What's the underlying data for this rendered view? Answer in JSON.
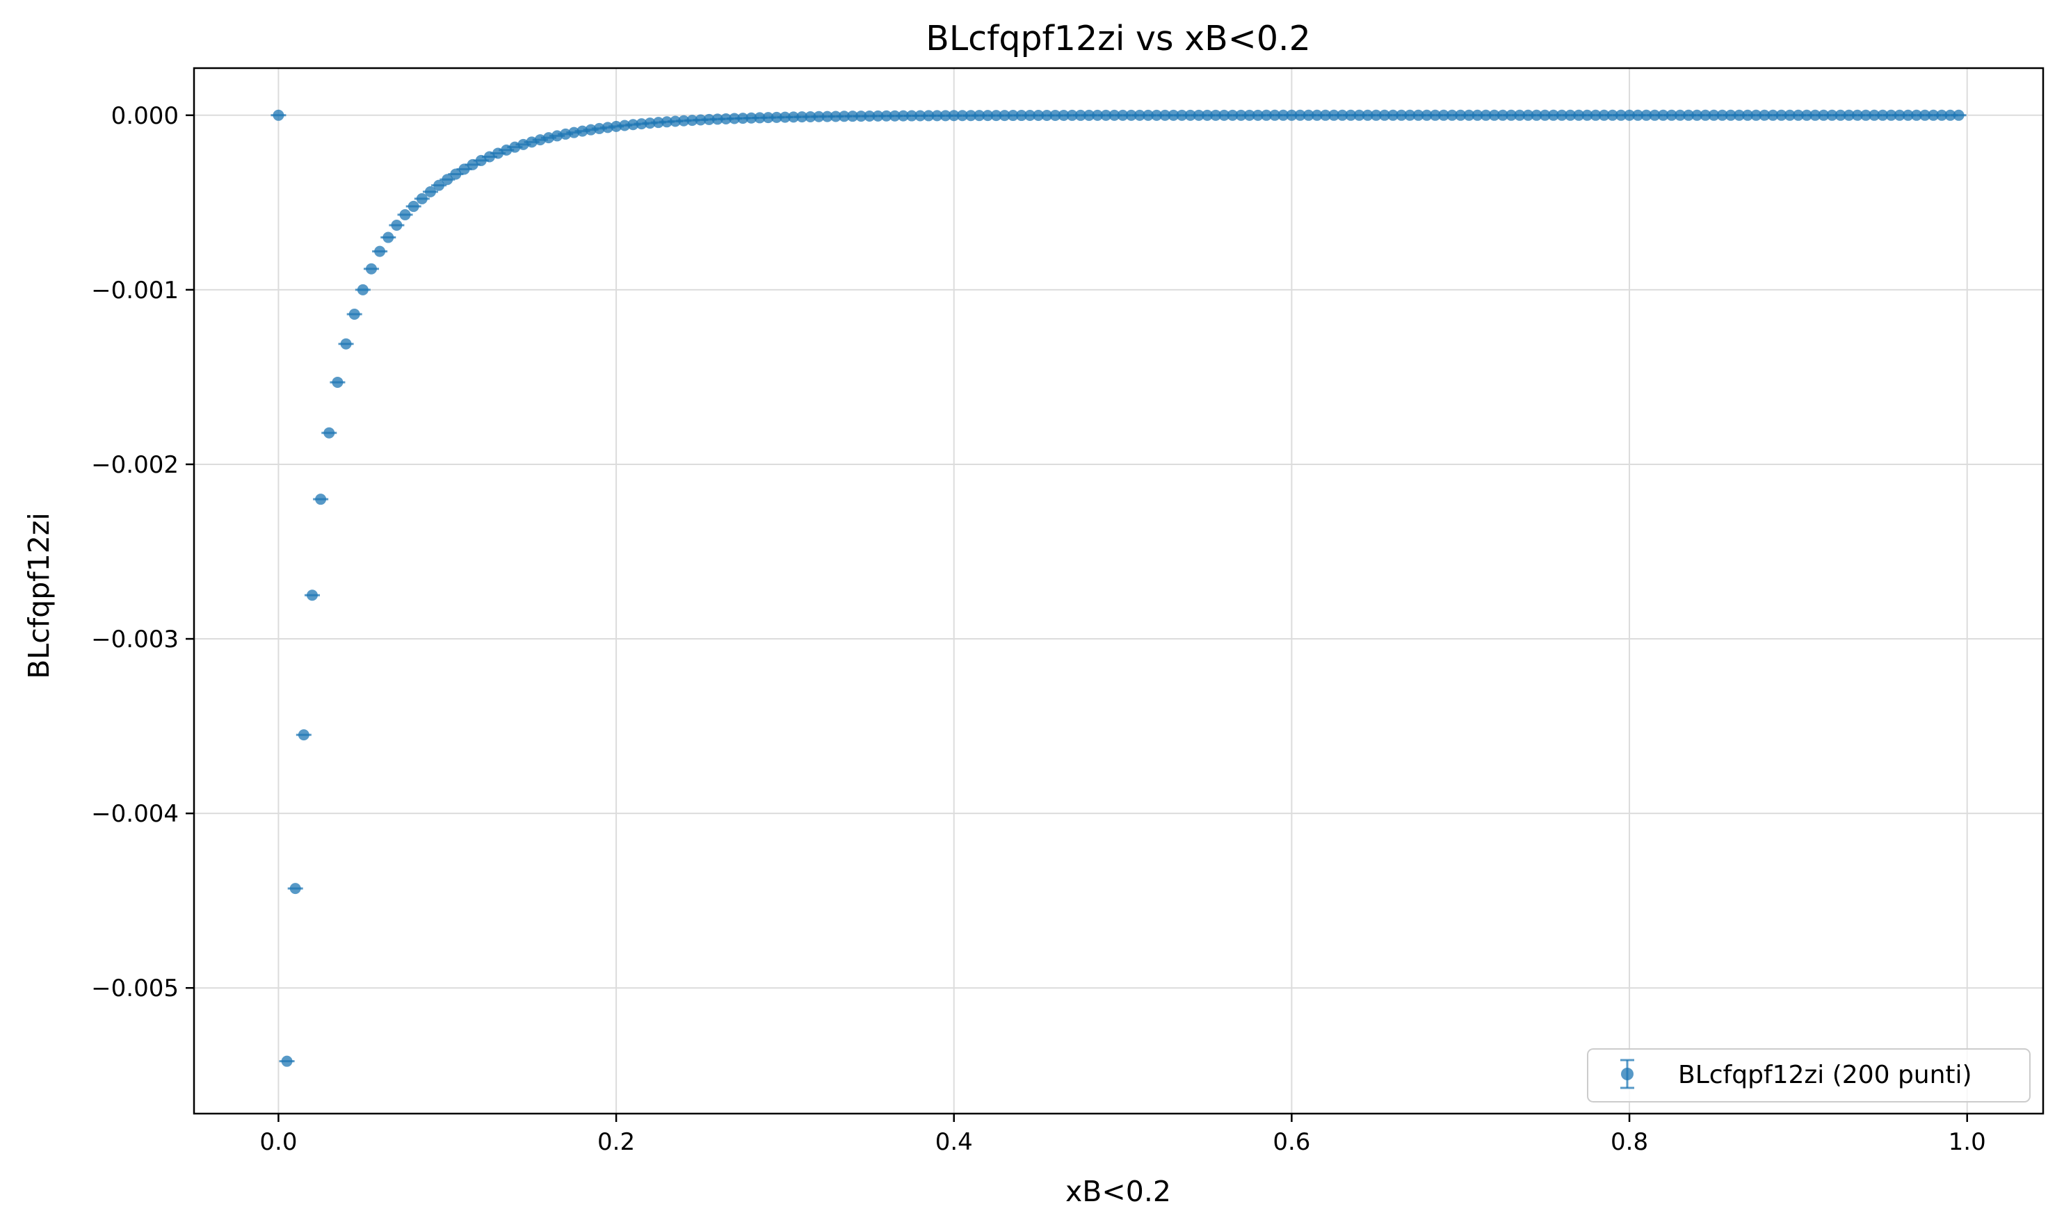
{
  "chart_data": {
    "type": "scatter",
    "title": "BLcfqpf12zi vs xB<0.2",
    "xlabel": "xB<0.2",
    "ylabel": "BLcfqpf12zi",
    "xlim": [
      -0.05,
      1.045
    ],
    "ylim": [
      -0.00572,
      0.00027
    ],
    "x_ticks": [
      0.0,
      0.2,
      0.4,
      0.6,
      0.8,
      1.0
    ],
    "x_tick_labels": [
      "0.0",
      "0.2",
      "0.4",
      "0.6",
      "0.8",
      "1.0"
    ],
    "y_ticks": [
      0.0,
      -0.001,
      -0.002,
      -0.003,
      -0.004,
      -0.005
    ],
    "y_tick_labels": [
      "0.000",
      "−0.001",
      "−0.002",
      "−0.003",
      "−0.004",
      "−0.005"
    ],
    "grid": true,
    "legend_position": "lower-right",
    "series": [
      {
        "name": "BLcfqpf12zi (200 punti)",
        "color": "#1f77b4",
        "marker": "circle-with-errorbar",
        "points": [
          {
            "x": 0.0,
            "y": 0.0
          },
          {
            "x": 0.005,
            "y": -0.00542
          },
          {
            "x": 0.01,
            "y": -0.00443
          },
          {
            "x": 0.015,
            "y": -0.00355
          },
          {
            "x": 0.02,
            "y": -0.00275
          },
          {
            "x": 0.025,
            "y": -0.0022
          },
          {
            "x": 0.03,
            "y": -0.00182
          },
          {
            "x": 0.035,
            "y": -0.00153
          },
          {
            "x": 0.04,
            "y": -0.00131
          },
          {
            "x": 0.045,
            "y": -0.00114
          },
          {
            "x": 0.05,
            "y": -0.001
          },
          {
            "x": 0.055,
            "y": -0.00088
          },
          {
            "x": 0.06,
            "y": -0.00078
          },
          {
            "x": 0.065,
            "y": -0.0007
          },
          {
            "x": 0.07,
            "y": -0.00063
          }
        ],
        "tail": {
          "x_start": 0.075,
          "x_step": 0.005,
          "count": 185,
          "y_start": -0.00057,
          "decay_rate": 17.5,
          "description_of_trend": "approaches 0.000 for xB > 0.35"
        }
      }
    ]
  }
}
